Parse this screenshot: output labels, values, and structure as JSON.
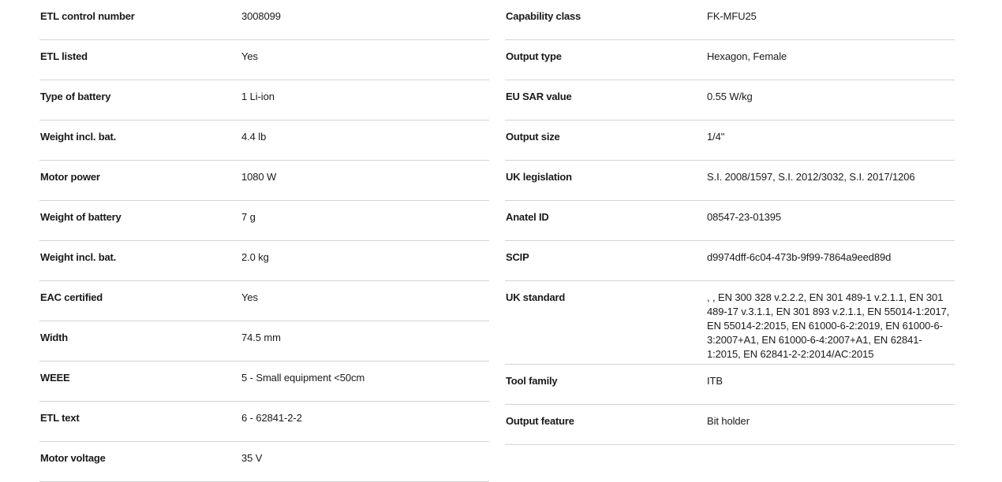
{
  "left": [
    {
      "label": "ETL control number",
      "value": "3008099"
    },
    {
      "label": "ETL listed",
      "value": "Yes"
    },
    {
      "label": "Type of battery",
      "value": "1 Li-ion"
    },
    {
      "label": "Weight incl. bat.",
      "value": "4.4 lb"
    },
    {
      "label": "Motor power",
      "value": "1080 W"
    },
    {
      "label": "Weight of battery",
      "value": "7 g"
    },
    {
      "label": "Weight incl. bat.",
      "value": "2.0 kg"
    },
    {
      "label": "EAC certified",
      "value": "Yes"
    },
    {
      "label": "Width",
      "value": "74.5 mm"
    },
    {
      "label": "WEEE",
      "value": "5 - Small equipment <50cm"
    },
    {
      "label": "ETL text",
      "value": "6 - 62841-2-2"
    },
    {
      "label": "Motor voltage",
      "value": "35 V"
    }
  ],
  "right": [
    {
      "label": "Capability class",
      "value": "FK-MFU25"
    },
    {
      "label": "Output type",
      "value": "Hexagon, Female"
    },
    {
      "label": "EU SAR value",
      "value": "0.55 W/kg"
    },
    {
      "label": "Output size",
      "value": "1/4\""
    },
    {
      "label": "UK legislation",
      "value": "S.I. 2008/1597, S.I. 2012/3032, S.I. 2017/1206"
    },
    {
      "label": "Anatel ID",
      "value": "08547-23-01395"
    },
    {
      "label": "SCIP",
      "value": "d9974dff-6c04-473b-9f99-7864a9eed89d"
    },
    {
      "label": "UK standard",
      "value": ", , EN 300 328 v.2.2.2, EN 301 489-1 v.2.1.1, EN 301 489-17 v.3.1.1, EN 301 893 v.2.1.1, EN 55014-1:2017, EN 55014-2:2015, EN 61000-6-2:2019, EN 61000-6-3:2007+A1, EN 61000-6-4:2007+A1, EN 62841-1:2015, EN 62841-2-2:2014/AC:2015"
    },
    {
      "label": "Tool family",
      "value": "ITB"
    },
    {
      "label": "Output feature",
      "value": "Bit holder"
    }
  ]
}
